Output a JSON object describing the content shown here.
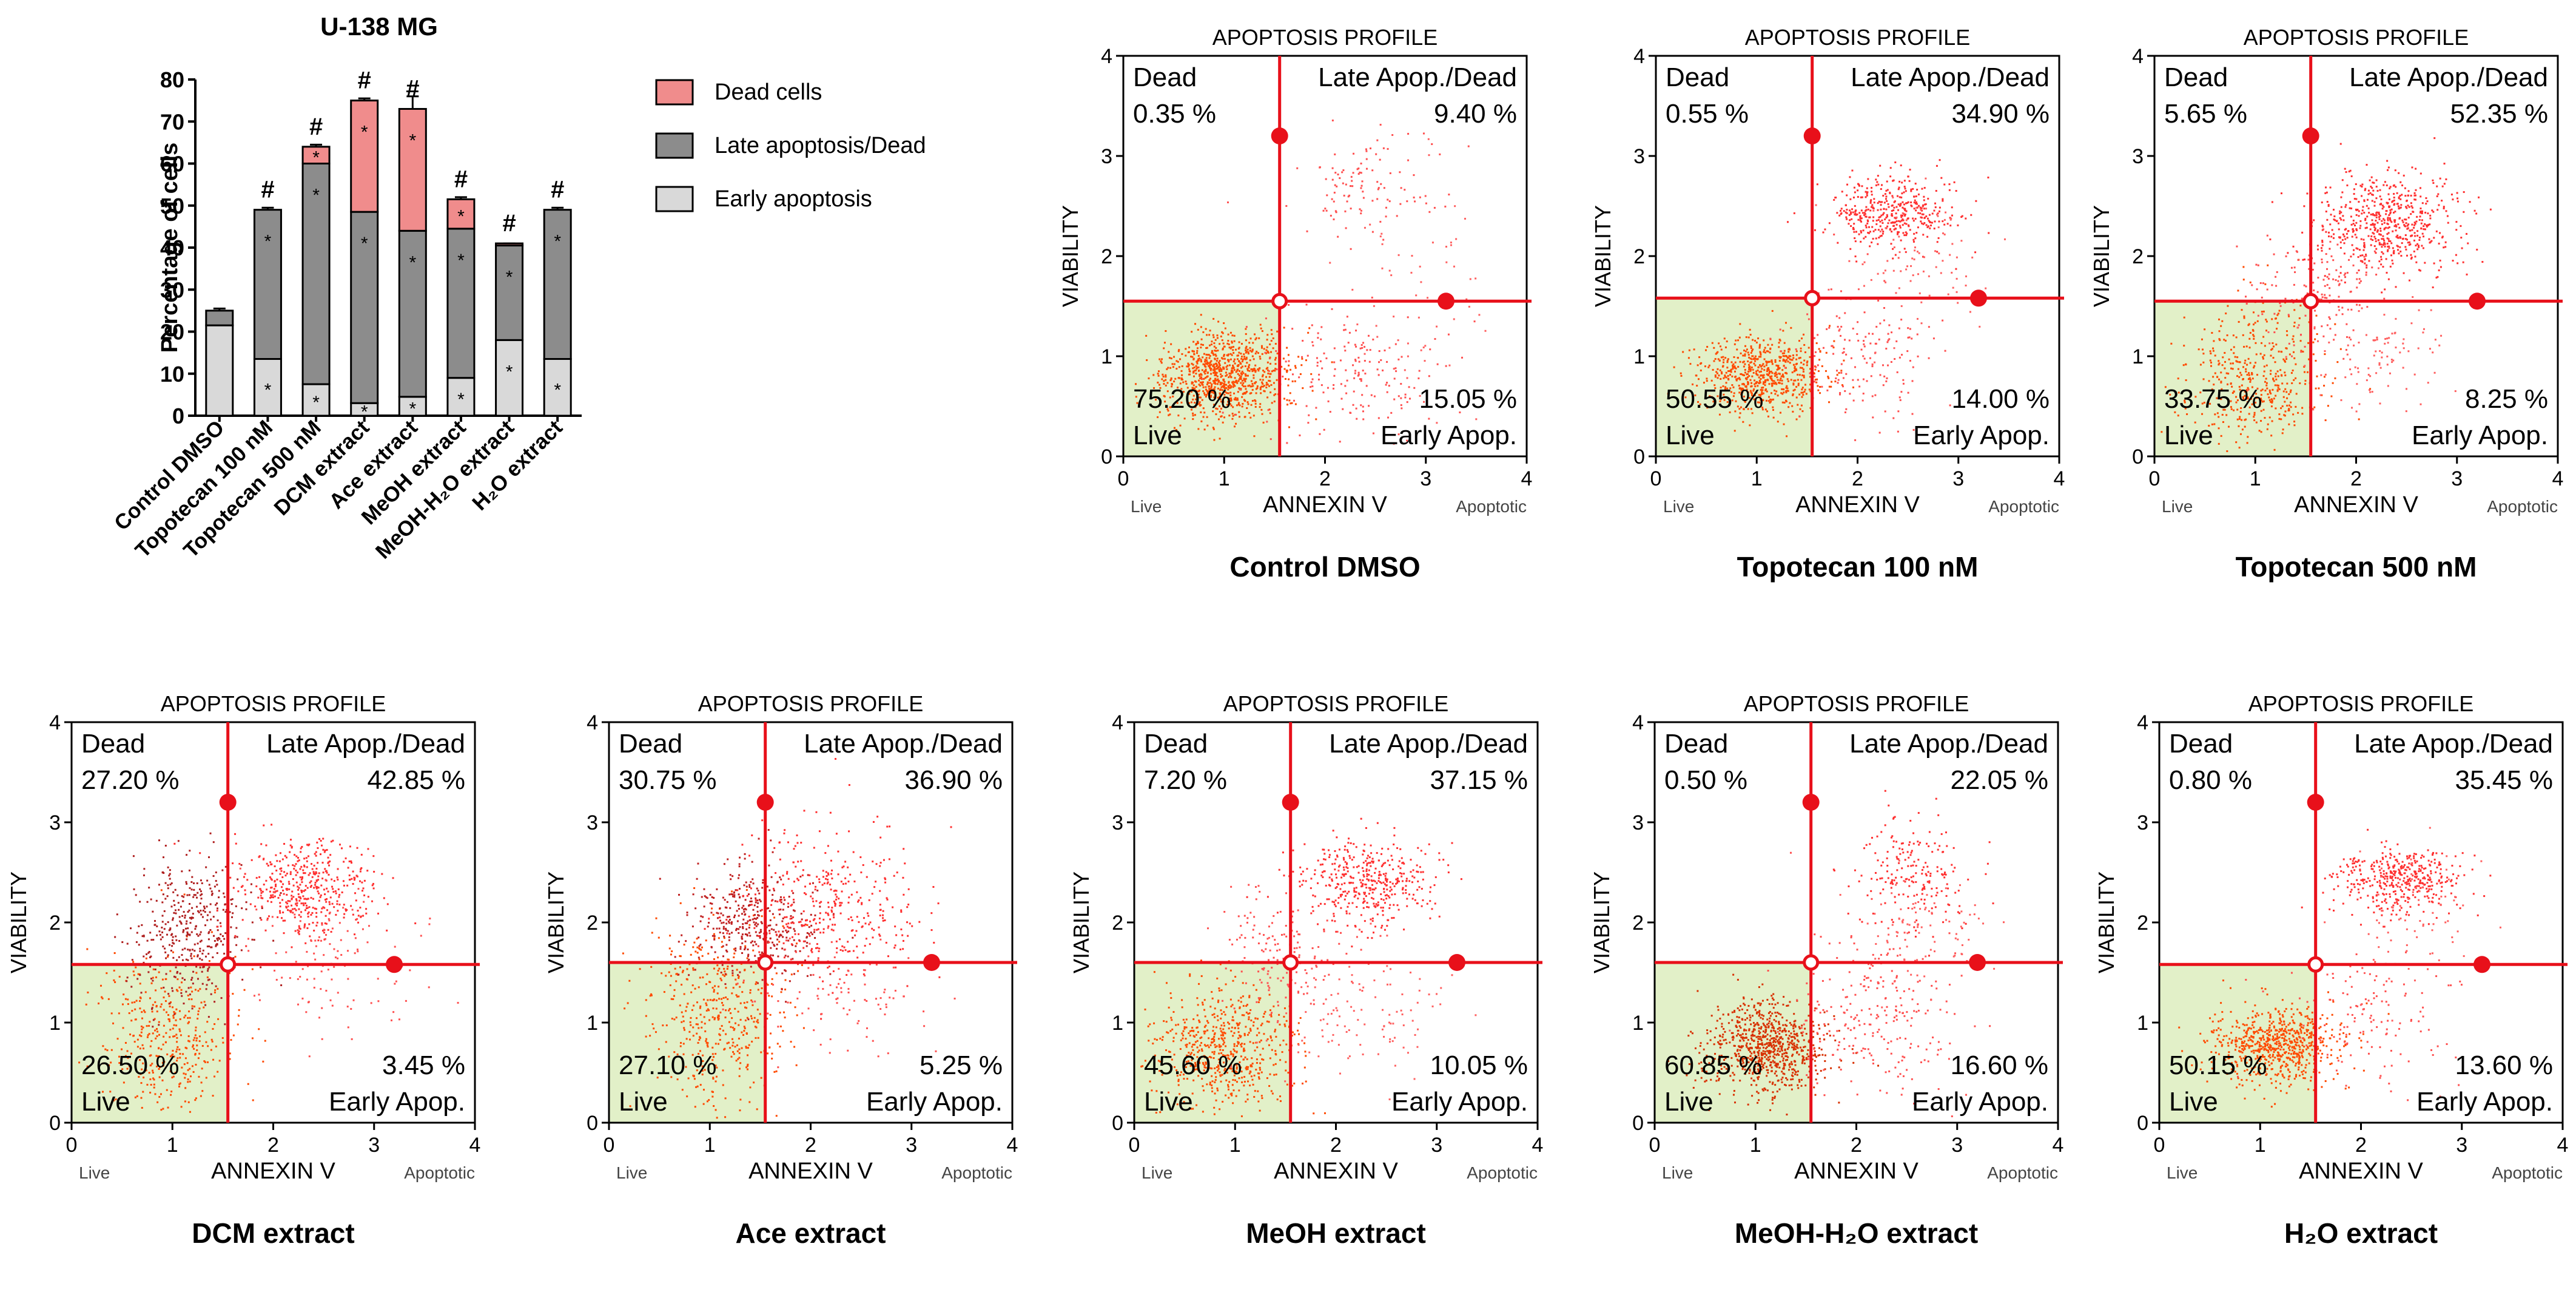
{
  "chart_data": [
    {
      "id": "bar",
      "type": "bar",
      "stacked": true,
      "title": "U-138 MG",
      "xlabel": "",
      "ylabel": "Percentage of cells",
      "ylim": [
        0,
        80
      ],
      "yticks": [
        0,
        10,
        20,
        30,
        40,
        50,
        60,
        70,
        80
      ],
      "categories": [
        "Control DMSO",
        "Topotecan 100 nM",
        "Topotecan 500 nM",
        "DCM extract",
        "Ace extract",
        "MeOH extract",
        "MeOH-H₂O extract",
        "H₂O extract"
      ],
      "series": [
        {
          "name": "Early apoptosis",
          "color": "#d9d9d9",
          "values": [
            21.5,
            13.5,
            7.5,
            3.0,
            4.5,
            9.0,
            18.0,
            13.5
          ],
          "errors": [
            1.0,
            0.5,
            0.5,
            0.5,
            0.5,
            0.5,
            1.5,
            0.5
          ],
          "marks": [
            "",
            "*",
            "*",
            "*",
            "*",
            "*",
            "*",
            "*"
          ]
        },
        {
          "name": "Late apoptosis/Dead",
          "color": "#8c8c8c",
          "values": [
            3.5,
            35.5,
            52.5,
            45.5,
            39.5,
            35.5,
            22.5,
            35.5
          ],
          "errors": [
            0.5,
            0.5,
            1.5,
            3.5,
            3.5,
            2.5,
            0.5,
            0.5
          ],
          "marks": [
            "",
            "*",
            "*",
            "*",
            "*",
            "*",
            "*",
            "*"
          ]
        },
        {
          "name": "Dead cells",
          "color": "#f08c8c",
          "values": [
            0.0,
            0.0,
            4.0,
            26.5,
            29.0,
            7.0,
            0.5,
            0.0
          ],
          "errors": [
            0,
            0,
            0.5,
            0.5,
            3.0,
            0.5,
            0,
            0
          ],
          "marks": [
            "",
            "",
            "*",
            "*",
            "*",
            "*",
            "",
            ""
          ]
        }
      ],
      "significance": [
        "",
        "#",
        "#",
        "#",
        "#",
        "#",
        "#",
        "#"
      ],
      "legend": [
        "Dead cells",
        "Late apoptosis/Dead",
        "Early apoptosis"
      ],
      "legend_position": "right"
    },
    {
      "id": "p1",
      "type": "scatter",
      "title": "APOPTOSIS PROFILE",
      "caption": "Control DMSO",
      "xlabel": "ANNEXIN V",
      "ylabel": "VIABILITY",
      "xlim": [
        0,
        4
      ],
      "ylim": [
        0,
        4
      ],
      "xticks": [
        0,
        1,
        2,
        3,
        4
      ],
      "yticks": [
        0,
        1,
        2,
        3,
        4
      ],
      "x_low": "Live",
      "x_high": "Apoptotic",
      "gate": [
        1.55,
        1.55
      ],
      "quadrants": {
        "ul_name": "Dead",
        "ul_value": "0.35 %",
        "ur_name": "Late Apop./Dead",
        "ur_value": "9.40 %",
        "ll_name": "Live",
        "ll_value": "75.20 %",
        "lr_name": "Early Apop.",
        "lr_value": "15.05 %"
      },
      "clusters": [
        {
          "cx": 1.0,
          "cy": 0.82,
          "sx": 0.32,
          "sy": 0.22,
          "n": 900,
          "color": "#ff4a00"
        },
        {
          "cx": 2.3,
          "cy": 0.85,
          "sx": 0.45,
          "sy": 0.3,
          "n": 180,
          "color": "#ff5050"
        },
        {
          "cx": 2.4,
          "cy": 2.7,
          "sx": 0.35,
          "sy": 0.25,
          "n": 110,
          "color": "#ff5050"
        },
        {
          "cx": 2.9,
          "cy": 1.6,
          "sx": 0.5,
          "sy": 0.6,
          "n": 60,
          "color": "#ff6060"
        }
      ]
    },
    {
      "id": "p2",
      "type": "scatter",
      "title": "APOPTOSIS PROFILE",
      "caption": "Topotecan 100 nM",
      "xlabel": "ANNEXIN V",
      "ylabel": "VIABILITY",
      "xlim": [
        0,
        4
      ],
      "ylim": [
        0,
        4
      ],
      "xticks": [
        0,
        1,
        2,
        3,
        4
      ],
      "yticks": [
        0,
        1,
        2,
        3,
        4
      ],
      "x_low": "Live",
      "x_high": "Apoptotic",
      "gate": [
        1.55,
        1.58
      ],
      "quadrants": {
        "ul_name": "Dead",
        "ul_value": "0.55 %",
        "ur_name": "Late Apop./Dead",
        "ur_value": "34.90 %",
        "ll_name": "Live",
        "ll_value": "50.55 %",
        "lr_name": "Early Apop.",
        "lr_value": "14.00 %"
      },
      "clusters": [
        {
          "cx": 1.05,
          "cy": 0.82,
          "sx": 0.3,
          "sy": 0.2,
          "n": 650,
          "color": "#ff4a00"
        },
        {
          "cx": 2.35,
          "cy": 2.45,
          "sx": 0.32,
          "sy": 0.18,
          "n": 420,
          "color": "#ff3030"
        },
        {
          "cx": 2.1,
          "cy": 1.0,
          "sx": 0.4,
          "sy": 0.35,
          "n": 160,
          "color": "#ff5050"
        },
        {
          "cx": 2.6,
          "cy": 1.9,
          "sx": 0.4,
          "sy": 0.4,
          "n": 90,
          "color": "#ff6060"
        }
      ]
    },
    {
      "id": "p3",
      "type": "scatter",
      "title": "APOPTOSIS PROFILE",
      "caption": "Topotecan 500 nM",
      "xlabel": "ANNEXIN V",
      "ylabel": "VIABILITY",
      "xlim": [
        0,
        4
      ],
      "ylim": [
        0,
        4
      ],
      "xticks": [
        0,
        1,
        2,
        3,
        4
      ],
      "yticks": [
        0,
        1,
        2,
        3,
        4
      ],
      "x_low": "Live",
      "x_high": "Apoptotic",
      "gate": [
        1.55,
        1.55
      ],
      "quadrants": {
        "ul_name": "Dead",
        "ul_value": "5.65 %",
        "ur_name": "Late Apop./Dead",
        "ur_value": "52.35 %",
        "ll_name": "Live",
        "ll_value": "33.75 %",
        "lr_name": "Early Apop.",
        "lr_value": "8.25 %"
      },
      "clusters": [
        {
          "cx": 1.0,
          "cy": 0.8,
          "sx": 0.35,
          "sy": 0.35,
          "n": 450,
          "color": "#ff4a00"
        },
        {
          "cx": 2.3,
          "cy": 2.35,
          "sx": 0.35,
          "sy": 0.25,
          "n": 600,
          "color": "#ff3030"
        },
        {
          "cx": 1.6,
          "cy": 1.7,
          "sx": 0.3,
          "sy": 0.3,
          "n": 150,
          "color": "#ff5050"
        },
        {
          "cx": 2.2,
          "cy": 1.0,
          "sx": 0.4,
          "sy": 0.3,
          "n": 100,
          "color": "#ff6060"
        }
      ]
    },
    {
      "id": "p4",
      "type": "scatter",
      "title": "APOPTOSIS PROFILE",
      "caption": "DCM extract",
      "xlabel": "ANNEXIN V",
      "ylabel": "VIABILITY",
      "xlim": [
        0,
        4
      ],
      "ylim": [
        0,
        4
      ],
      "xticks": [
        0,
        1,
        2,
        3,
        4
      ],
      "yticks": [
        0,
        1,
        2,
        3,
        4
      ],
      "x_low": "Live",
      "x_high": "Apoptotic",
      "gate": [
        1.55,
        1.58
      ],
      "quadrants": {
        "ul_name": "Dead",
        "ul_value": "27.20 %",
        "ur_name": "Late Apop./Dead",
        "ur_value": "42.85 %",
        "ll_name": "Live",
        "ll_value": "26.50 %",
        "lr_name": "Early Apop.",
        "lr_value": "3.45 %"
      },
      "clusters": [
        {
          "cx": 0.95,
          "cy": 0.85,
          "sx": 0.35,
          "sy": 0.4,
          "n": 400,
          "color": "#ff4a00"
        },
        {
          "cx": 1.2,
          "cy": 1.9,
          "sx": 0.3,
          "sy": 0.35,
          "n": 400,
          "color": "#b02020"
        },
        {
          "cx": 2.3,
          "cy": 2.35,
          "sx": 0.35,
          "sy": 0.25,
          "n": 450,
          "color": "#ff3030"
        },
        {
          "cx": 2.5,
          "cy": 1.7,
          "sx": 0.4,
          "sy": 0.4,
          "n": 120,
          "color": "#ff5050"
        }
      ]
    },
    {
      "id": "p5",
      "type": "scatter",
      "title": "APOPTOSIS PROFILE",
      "caption": "Ace extract",
      "xlabel": "ANNEXIN V",
      "ylabel": "VIABILITY",
      "xlim": [
        0,
        4
      ],
      "ylim": [
        0,
        4
      ],
      "xticks": [
        0,
        1,
        2,
        3,
        4
      ],
      "yticks": [
        0,
        1,
        2,
        3,
        4
      ],
      "x_low": "Live",
      "x_high": "Apoptotic",
      "gate": [
        1.55,
        1.6
      ],
      "quadrants": {
        "ul_name": "Dead",
        "ul_value": "30.75 %",
        "ur_name": "Late Apop./Dead",
        "ur_value": "36.90 %",
        "ll_name": "Live",
        "ll_value": "27.10 %",
        "lr_name": "Early Apop.",
        "lr_value": "5.25 %"
      },
      "clusters": [
        {
          "cx": 1.1,
          "cy": 1.1,
          "sx": 0.35,
          "sy": 0.45,
          "n": 450,
          "color": "#ff4a00"
        },
        {
          "cx": 1.4,
          "cy": 2.0,
          "sx": 0.3,
          "sy": 0.3,
          "n": 400,
          "color": "#c02020"
        },
        {
          "cx": 2.2,
          "cy": 2.2,
          "sx": 0.45,
          "sy": 0.4,
          "n": 350,
          "color": "#ff3030"
        },
        {
          "cx": 2.3,
          "cy": 1.3,
          "sx": 0.4,
          "sy": 0.3,
          "n": 100,
          "color": "#ff5050"
        }
      ]
    },
    {
      "id": "p6",
      "type": "scatter",
      "title": "APOPTOSIS PROFILE",
      "caption": "MeOH extract",
      "xlabel": "ANNEXIN V",
      "ylabel": "VIABILITY",
      "xlim": [
        0,
        4
      ],
      "ylim": [
        0,
        4
      ],
      "xticks": [
        0,
        1,
        2,
        3,
        4
      ],
      "yticks": [
        0,
        1,
        2,
        3,
        4
      ],
      "x_low": "Live",
      "x_high": "Apoptotic",
      "gate": [
        1.55,
        1.6
      ],
      "quadrants": {
        "ul_name": "Dead",
        "ul_value": "7.20 %",
        "ur_name": "Late Apop./Dead",
        "ur_value": "37.15 %",
        "ll_name": "Live",
        "ll_value": "45.60 %",
        "lr_name": "Early Apop.",
        "lr_value": "10.05 %"
      },
      "clusters": [
        {
          "cx": 0.9,
          "cy": 0.75,
          "sx": 0.35,
          "sy": 0.3,
          "n": 600,
          "color": "#ff4a00"
        },
        {
          "cx": 2.3,
          "cy": 2.4,
          "sx": 0.35,
          "sy": 0.22,
          "n": 420,
          "color": "#ff3030"
        },
        {
          "cx": 1.5,
          "cy": 1.7,
          "sx": 0.35,
          "sy": 0.3,
          "n": 150,
          "color": "#ff5050"
        },
        {
          "cx": 2.2,
          "cy": 1.1,
          "sx": 0.45,
          "sy": 0.35,
          "n": 120,
          "color": "#ff6060"
        }
      ]
    },
    {
      "id": "p7",
      "type": "scatter",
      "title": "APOPTOSIS PROFILE",
      "caption": "MeOH-H₂O extract",
      "xlabel": "ANNEXIN V",
      "ylabel": "VIABILITY",
      "xlim": [
        0,
        4
      ],
      "ylim": [
        0,
        4
      ],
      "xticks": [
        0,
        1,
        2,
        3,
        4
      ],
      "yticks": [
        0,
        1,
        2,
        3,
        4
      ],
      "x_low": "Live",
      "x_high": "Apoptotic",
      "gate": [
        1.55,
        1.6
      ],
      "quadrants": {
        "ul_name": "Dead",
        "ul_value": "0.50 %",
        "ur_name": "Late Apop./Dead",
        "ur_value": "22.05 %",
        "ll_name": "Live",
        "ll_value": "60.85 %",
        "lr_name": "Early Apop.",
        "lr_value": "16.60 %"
      },
      "clusters": [
        {
          "cx": 1.1,
          "cy": 0.75,
          "sx": 0.3,
          "sy": 0.22,
          "n": 800,
          "color": "#d83000"
        },
        {
          "cx": 2.2,
          "cy": 1.1,
          "sx": 0.45,
          "sy": 0.4,
          "n": 250,
          "color": "#ff5050"
        },
        {
          "cx": 2.5,
          "cy": 2.5,
          "sx": 0.3,
          "sy": 0.3,
          "n": 200,
          "color": "#ff3030"
        },
        {
          "cx": 2.6,
          "cy": 1.9,
          "sx": 0.3,
          "sy": 0.3,
          "n": 90,
          "color": "#ff6060"
        }
      ]
    },
    {
      "id": "p8",
      "type": "scatter",
      "title": "APOPTOSIS PROFILE",
      "caption": "H₂O extract",
      "xlabel": "ANNEXIN V",
      "ylabel": "VIABILITY",
      "xlim": [
        0,
        4
      ],
      "ylim": [
        0,
        4
      ],
      "xticks": [
        0,
        1,
        2,
        3,
        4
      ],
      "yticks": [
        0,
        1,
        2,
        3,
        4
      ],
      "x_low": "Live",
      "x_high": "Apoptotic",
      "gate": [
        1.55,
        1.58
      ],
      "quadrants": {
        "ul_name": "Dead",
        "ul_value": "0.80 %",
        "ur_name": "Late Apop./Dead",
        "ur_value": "35.45 %",
        "ll_name": "Live",
        "ll_value": "50.15 %",
        "lr_name": "Early Apop.",
        "lr_value": "13.60 %"
      },
      "clusters": [
        {
          "cx": 1.15,
          "cy": 0.8,
          "sx": 0.32,
          "sy": 0.2,
          "n": 700,
          "color": "#ff4a00"
        },
        {
          "cx": 2.35,
          "cy": 2.45,
          "sx": 0.3,
          "sy": 0.18,
          "n": 420,
          "color": "#ff3030"
        },
        {
          "cx": 2.1,
          "cy": 1.1,
          "sx": 0.4,
          "sy": 0.35,
          "n": 130,
          "color": "#ff5050"
        },
        {
          "cx": 2.6,
          "cy": 2.0,
          "sx": 0.3,
          "sy": 0.3,
          "n": 70,
          "color": "#ff6060"
        }
      ]
    }
  ]
}
